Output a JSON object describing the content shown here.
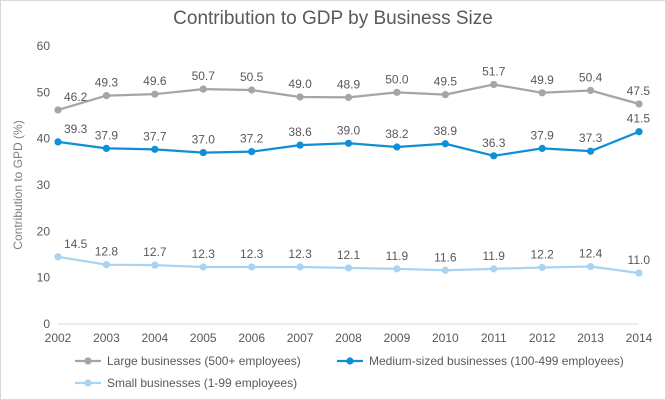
{
  "chart_data": {
    "type": "line",
    "title": "Contribution to GDP by Business Size",
    "xlabel": "",
    "ylabel": "Contribution to GPD (%)",
    "ylim": [
      0,
      60
    ],
    "yticks": [
      0,
      10,
      20,
      30,
      40,
      50,
      60
    ],
    "grid": false,
    "legend_position": "bottom",
    "categories": [
      "2002",
      "2003",
      "2004",
      "2005",
      "2006",
      "2007",
      "2008",
      "2009",
      "2010",
      "2011",
      "2012",
      "2013",
      "2014"
    ],
    "series": [
      {
        "name": "Large businesses (500+ employees)",
        "color": "#a5a5a5",
        "values": [
          46.2,
          49.3,
          49.6,
          50.7,
          50.5,
          49.0,
          48.9,
          50.0,
          49.5,
          51.7,
          49.9,
          50.4,
          47.5
        ],
        "labels": [
          "46.2",
          "49.3",
          "49.6",
          "50.7",
          "50.5",
          "49.0",
          "48.9",
          "50.0",
          "49.5",
          "51.7",
          "49.9",
          "50.4",
          "47.5"
        ]
      },
      {
        "name": "Medium-sized businesses (100-499 employees)",
        "color": "#0e8fd6",
        "values": [
          39.3,
          37.9,
          37.7,
          37.0,
          37.2,
          38.6,
          39.0,
          38.2,
          38.9,
          36.3,
          37.9,
          37.3,
          41.5
        ],
        "labels": [
          "39.3",
          "37.9",
          "37.7",
          "37.0",
          "37.2",
          "38.6",
          "39.0",
          "38.2",
          "38.9",
          "36.3",
          "37.9",
          "37.3",
          "41.5"
        ]
      },
      {
        "name": "Small businesses (1-99 employees)",
        "color": "#a9d3f0",
        "values": [
          14.5,
          12.8,
          12.7,
          12.3,
          12.3,
          12.3,
          12.1,
          11.9,
          11.6,
          11.9,
          12.2,
          12.4,
          11.0
        ],
        "labels": [
          "14.5",
          "12.8",
          "12.7",
          "12.3",
          "12.3",
          "12.3",
          "12.1",
          "11.9",
          "11.6",
          "11.9",
          "12.2",
          "12.4",
          "11.0"
        ]
      }
    ]
  }
}
